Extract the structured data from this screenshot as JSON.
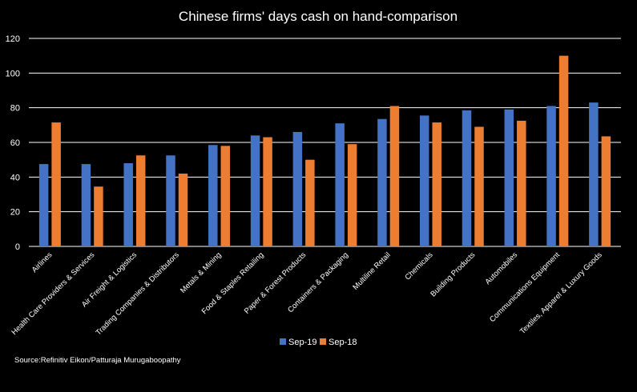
{
  "chart_data": {
    "type": "bar",
    "title": "Chinese firms' days cash on hand-comparison",
    "xlabel": "",
    "ylabel": "",
    "ylim": [
      0,
      120
    ],
    "yticks": [
      0,
      20,
      40,
      60,
      80,
      100,
      120
    ],
    "grid": true,
    "legend_position": "bottom-center",
    "categories": [
      "Airlines",
      "Health Care Providers & Services",
      "Air Freight & Logistics",
      "Trading Companies & Distributors",
      "Metals & Mining",
      "Food & Staples Retailing",
      "Paper & Forest Products",
      "Containers & Packaging",
      "Multiline Retail",
      "Chemicals",
      "Building Products",
      "Automobiles",
      "Communications Equipment",
      "Textiles, Apparel & Luxury Goods"
    ],
    "series": [
      {
        "name": "Sep-19",
        "color": "#4472C4",
        "values": [
          47.5,
          47.5,
          48,
          52.5,
          58.5,
          64,
          66,
          71,
          73.5,
          75.5,
          78.5,
          79,
          81,
          83
        ]
      },
      {
        "name": "Sep-18",
        "color": "#ED7D31",
        "values": [
          71.5,
          34.5,
          52.5,
          42,
          58,
          63,
          50,
          59,
          81,
          71.5,
          69,
          72.5,
          110,
          63.5
        ]
      }
    ],
    "source": "Source:Refinitiv Eikon/Patturaja Murugaboopathy"
  }
}
